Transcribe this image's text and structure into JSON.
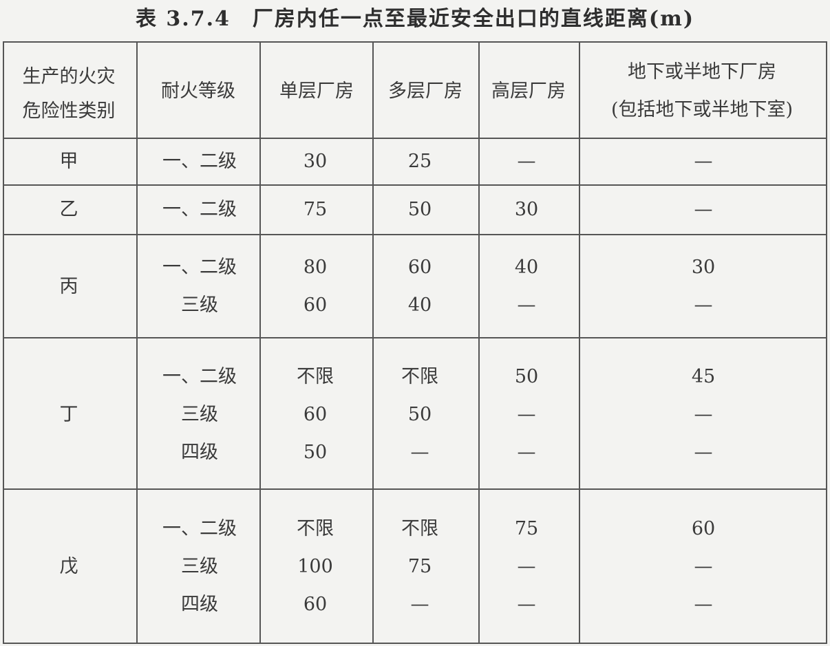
{
  "title": "表 3.7.4　厂房内任一点至最近安全出口的直线距离(m)",
  "headers": {
    "category_line1": "生产的火灾",
    "category_line2": "危险性类别",
    "fire_rating": "耐火等级",
    "single_storey": "单层厂房",
    "multi_storey": "多层厂房",
    "high_rise": "高层厂房",
    "underground_line1": "地下或半地下厂房",
    "underground_line2": "(包括地下或半地下室)"
  },
  "groups": [
    {
      "category": "甲",
      "rows": [
        [
          "一、二级",
          "30",
          "25",
          "—",
          "—"
        ]
      ]
    },
    {
      "category": "乙",
      "rows": [
        [
          "一、二级",
          "75",
          "50",
          "30",
          "—"
        ]
      ]
    },
    {
      "category": "丙",
      "rows": [
        [
          "一、二级",
          "80",
          "60",
          "40",
          "30"
        ],
        [
          "三级",
          "60",
          "40",
          "—",
          "—"
        ]
      ]
    },
    {
      "category": "丁",
      "rows": [
        [
          "一、二级",
          "不限",
          "不限",
          "50",
          "45"
        ],
        [
          "三级",
          "60",
          "50",
          "—",
          "—"
        ],
        [
          "四级",
          "50",
          "—",
          "—",
          "—"
        ]
      ]
    },
    {
      "category": "戊",
      "rows": [
        [
          "一、二级",
          "不限",
          "不限",
          "75",
          "60"
        ],
        [
          "三级",
          "100",
          "75",
          "—",
          "—"
        ],
        [
          "四级",
          "60",
          "—",
          "—",
          "—"
        ]
      ]
    }
  ]
}
